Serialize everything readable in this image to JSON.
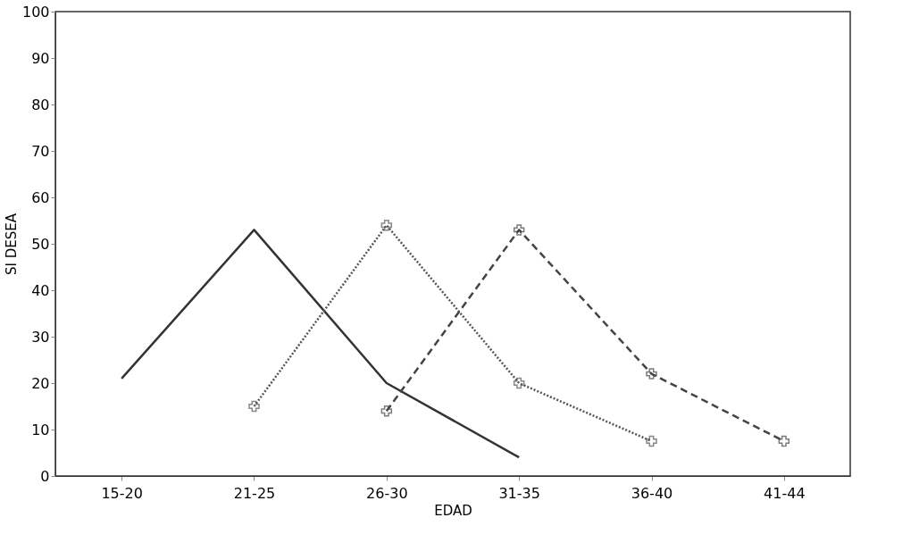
{
  "chart_data": {
    "type": "line",
    "xlabel": "EDAD",
    "ylabel": "SI DESEA",
    "categories": [
      "15-20",
      "21-25",
      "26-30",
      "31-35",
      "36-40",
      "41-44"
    ],
    "series": [
      {
        "color": "#333333",
        "line_style": "solid",
        "marker": "none",
        "values": [
          21,
          53,
          20,
          4,
          null,
          null
        ]
      },
      {
        "color": "#555555",
        "line_style": "dotted",
        "marker": "cross",
        "values": [
          null,
          15,
          54,
          20,
          7.5,
          null
        ]
      },
      {
        "color": "#444444",
        "line_style": "dashed",
        "marker": "cross",
        "values": [
          null,
          null,
          14,
          53,
          22,
          7.5
        ]
      }
    ],
    "ylim": [
      0,
      100
    ],
    "yticks": [
      0,
      10,
      20,
      30,
      40,
      50,
      60,
      70,
      80,
      90,
      100
    ],
    "grid": false
  }
}
